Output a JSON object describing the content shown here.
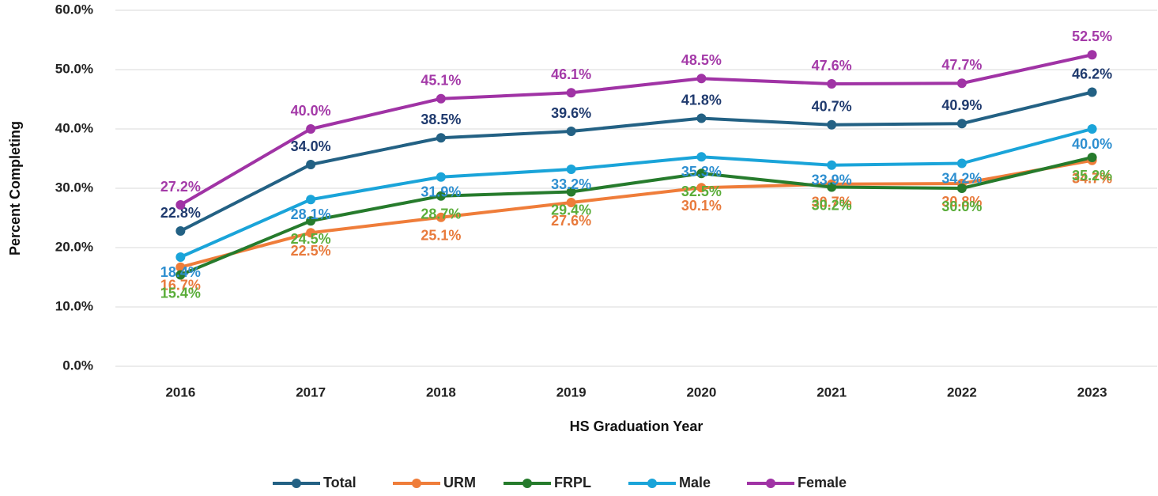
{
  "chart_data": {
    "type": "line",
    "x_label": "HS Graduation Year",
    "y_label": "Percent Completing",
    "categories": [
      "2016",
      "2017",
      "2018",
      "2019",
      "2020",
      "2021",
      "2022",
      "2023"
    ],
    "ylim": [
      0,
      60
    ],
    "yticks": [
      {
        "value": 0,
        "label": "0.0%"
      },
      {
        "value": 10,
        "label": "10.0%"
      },
      {
        "value": 20,
        "label": "20.0%"
      },
      {
        "value": 30,
        "label": "30.0%"
      },
      {
        "value": 40,
        "label": "40.0%"
      },
      {
        "value": 50,
        "label": "50.0%"
      },
      {
        "value": 60,
        "label": "60.0%"
      }
    ],
    "grid": true,
    "legend": "bottom",
    "series": [
      {
        "name": "Total",
        "color": "#236184",
        "label_color": "#1f3a6e",
        "values": [
          22.8,
          34.0,
          38.5,
          39.6,
          41.8,
          40.7,
          40.9,
          46.2
        ],
        "value_labels": [
          "22.8%",
          "34.0%",
          "38.5%",
          "39.6%",
          "41.8%",
          "40.7%",
          "40.9%",
          "46.2%"
        ]
      },
      {
        "name": "URM",
        "color": "#ef7d3a",
        "label_color": "#e87a3c",
        "values": [
          16.7,
          22.5,
          25.1,
          27.6,
          30.1,
          30.7,
          30.8,
          34.7
        ],
        "value_labels": [
          "16.7%",
          "22.5%",
          "25.1%",
          "27.6%",
          "30.1%",
          "30.7%",
          "30.8%",
          "34.7%"
        ]
      },
      {
        "name": "FRPL",
        "color": "#267b2c",
        "label_color": "#5aad3a",
        "values": [
          15.4,
          24.5,
          28.7,
          29.4,
          32.5,
          30.2,
          30.0,
          35.2
        ],
        "value_labels": [
          "15.4%",
          "24.5%",
          "28.7%",
          "29.4%",
          "32.5%",
          "30.2%",
          "30.0%",
          "35.2%"
        ]
      },
      {
        "name": "Male",
        "color": "#1aa4d9",
        "label_color": "#2e8fd0",
        "values": [
          18.4,
          28.1,
          31.9,
          33.2,
          35.3,
          33.9,
          34.2,
          40.0
        ],
        "value_labels": [
          "18.4%",
          "28.1%",
          "31.9%",
          "33.2%",
          "35.3%",
          "33.9%",
          "34.2%",
          "40.0%"
        ]
      },
      {
        "name": "Female",
        "color": "#a033a5",
        "label_color": "#a43aa8",
        "values": [
          27.2,
          40.0,
          45.1,
          46.1,
          48.5,
          47.6,
          47.7,
          52.5
        ],
        "value_labels": [
          "27.2%",
          "40.0%",
          "45.1%",
          "46.1%",
          "48.5%",
          "47.6%",
          "47.7%",
          "52.5%"
        ]
      }
    ]
  }
}
